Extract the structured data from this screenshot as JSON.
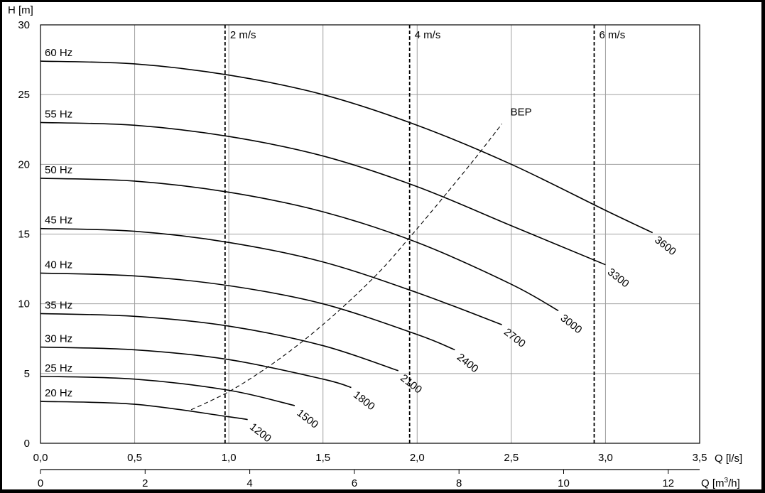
{
  "chart_data": {
    "type": "line",
    "ylabel": "H [m]",
    "xlabel": "Q [l/s]",
    "x2label_prefix": "Q [m",
    "x2label_sup": "3",
    "x2label_suffix": "/h]",
    "xlim": [
      0,
      3.5
    ],
    "ylim": [
      0,
      30
    ],
    "x_ticks": [
      {
        "value": 0,
        "label": "0,0"
      },
      {
        "value": 0.5,
        "label": "0,5"
      },
      {
        "value": 1.0,
        "label": "1,0"
      },
      {
        "value": 1.5,
        "label": "1,5"
      },
      {
        "value": 2.0,
        "label": "2,0"
      },
      {
        "value": 2.5,
        "label": "2,5"
      },
      {
        "value": 3.0,
        "label": "3,0"
      },
      {
        "value": 3.5,
        "label": "3,5"
      }
    ],
    "x2_ticks": [
      {
        "value": 0,
        "label": "0"
      },
      {
        "value": 2,
        "label": "2"
      },
      {
        "value": 4,
        "label": "4"
      },
      {
        "value": 6,
        "label": "6"
      },
      {
        "value": 8,
        "label": "8"
      },
      {
        "value": 10,
        "label": "10"
      },
      {
        "value": 12,
        "label": "12"
      }
    ],
    "y_ticks": [
      {
        "value": 0,
        "label": "0"
      },
      {
        "value": 5,
        "label": "5"
      },
      {
        "value": 10,
        "label": "10"
      },
      {
        "value": 15,
        "label": "15"
      },
      {
        "value": 20,
        "label": "20"
      },
      {
        "value": 25,
        "label": "25"
      },
      {
        "value": 30,
        "label": "30"
      }
    ],
    "grid": true,
    "series": [
      {
        "name": "20 Hz",
        "rpm_label": "1200",
        "x": [
          0,
          0.5,
          1.0,
          1.1
        ],
        "y": [
          3.0,
          2.8,
          1.9,
          1.7
        ]
      },
      {
        "name": "25 Hz",
        "rpm_label": "1500",
        "x": [
          0,
          0.5,
          1.0,
          1.35
        ],
        "y": [
          4.8,
          4.6,
          3.8,
          2.7
        ]
      },
      {
        "name": "30 Hz",
        "rpm_label": "1800",
        "x": [
          0,
          0.5,
          1.0,
          1.5,
          1.65
        ],
        "y": [
          6.9,
          6.7,
          6.0,
          4.6,
          4.0
        ]
      },
      {
        "name": "35 Hz",
        "rpm_label": "2100",
        "x": [
          0,
          0.5,
          1.0,
          1.5,
          1.9
        ],
        "y": [
          9.3,
          9.1,
          8.4,
          7.0,
          5.2
        ]
      },
      {
        "name": "40 Hz",
        "rpm_label": "2400",
        "x": [
          0,
          0.5,
          1.0,
          1.5,
          2.0,
          2.2
        ],
        "y": [
          12.2,
          12.0,
          11.3,
          10.0,
          7.8,
          6.7
        ]
      },
      {
        "name": "45 Hz",
        "rpm_label": "2700",
        "x": [
          0,
          0.5,
          1.0,
          1.5,
          2.0,
          2.45
        ],
        "y": [
          15.4,
          15.2,
          14.4,
          13.0,
          10.8,
          8.5
        ]
      },
      {
        "name": "50 Hz",
        "rpm_label": "3000",
        "x": [
          0,
          0.5,
          1.0,
          1.5,
          2.0,
          2.5,
          2.75
        ],
        "y": [
          19.0,
          18.8,
          18.0,
          16.6,
          14.4,
          11.4,
          9.5
        ]
      },
      {
        "name": "55 Hz",
        "rpm_label": "3300",
        "x": [
          0,
          0.5,
          1.0,
          1.5,
          2.0,
          2.5,
          3.0
        ],
        "y": [
          23.0,
          22.8,
          22.0,
          20.6,
          18.4,
          15.6,
          12.8
        ]
      },
      {
        "name": "60 Hz",
        "rpm_label": "3600",
        "x": [
          0,
          0.5,
          1.0,
          1.5,
          2.0,
          2.5,
          3.0,
          3.25
        ],
        "y": [
          27.4,
          27.2,
          26.4,
          25.0,
          22.8,
          20.0,
          16.7,
          15.1
        ]
      }
    ],
    "bep_curve": {
      "label": "BEP",
      "x": [
        0.8,
        1.0,
        1.2,
        1.4,
        1.6,
        1.8,
        1.95,
        2.1,
        2.3,
        2.45
      ],
      "y": [
        2.4,
        3.7,
        5.4,
        7.4,
        9.7,
        12.3,
        14.6,
        17.0,
        20.3,
        22.9
      ]
    },
    "velocity_lines": [
      {
        "label": "2 m/s",
        "x": 0.98
      },
      {
        "label": "4 m/s",
        "x": 1.96
      },
      {
        "label": "6 m/s",
        "x": 2.94
      }
    ]
  }
}
